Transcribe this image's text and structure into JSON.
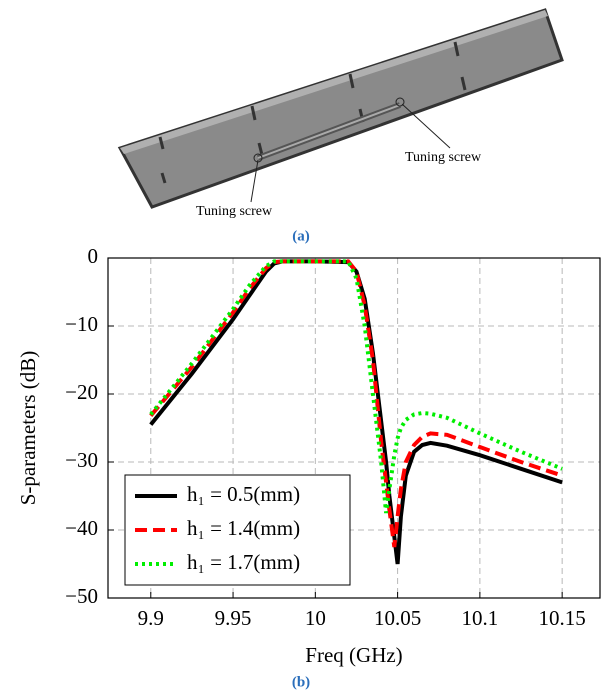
{
  "figure_a": {
    "labels": [
      "Tuning screw",
      "Tuning screw"
    ],
    "caption": "(a)"
  },
  "chart_data": {
    "type": "line",
    "x_label": "Freq (GHz)",
    "y_label": "S-parameters (dB)",
    "x": [
      9.9,
      9.925,
      9.95,
      9.96,
      9.97,
      9.975,
      9.98,
      10,
      10.02,
      10.025,
      10.03,
      10.035,
      10.04,
      10.043,
      10.045,
      10.048,
      10.05,
      10.052,
      10.055,
      10.06,
      10.065,
      10.07,
      10.08,
      10.1,
      10.125,
      10.15
    ],
    "series": [
      {
        "name": "h₁ = 0.5(mm)",
        "color": "#000000",
        "dash": "solid",
        "values": [
          -24.5,
          -17,
          -9,
          -5.5,
          -2,
          -0.8,
          -0.5,
          -0.5,
          -0.6,
          -2,
          -6,
          -14,
          -24,
          -30,
          -35,
          -41,
          -45,
          -38,
          -32,
          -28.5,
          -27.5,
          -27.2,
          -27.6,
          -29,
          -31,
          -33
        ]
      },
      {
        "name": "h₁ = 1.4(mm)",
        "color": "#ff0000",
        "dash": "dashed",
        "values": [
          -23.2,
          -16,
          -8,
          -4.5,
          -1.5,
          -0.6,
          -0.5,
          -0.5,
          -0.5,
          -2,
          -7,
          -15,
          -27,
          -33,
          -37,
          -42.5,
          -38,
          -34,
          -30,
          -27.5,
          -26.3,
          -25.8,
          -26,
          -27.8,
          -30,
          -32
        ]
      },
      {
        "name": "h₁ = 1.7(mm)",
        "color": "#00ee00",
        "dash": "dotted",
        "values": [
          -23,
          -15.5,
          -7.5,
          -4,
          -1.2,
          -0.5,
          -0.5,
          -0.5,
          -0.5,
          -3,
          -10,
          -20,
          -30,
          -37.5,
          -34,
          -29,
          -26.5,
          -25,
          -23.8,
          -23,
          -22.8,
          -22.9,
          -23.5,
          -25.8,
          -28.5,
          -31
        ]
      }
    ],
    "xlim": [
      9.874,
      10.173
    ],
    "ylim": [
      -50,
      0
    ],
    "xticks": [
      9.9,
      9.95,
      10,
      10.05,
      10.1,
      10.15
    ],
    "yticks": [
      {
        "value": -50,
        "label": "−50"
      },
      {
        "value": -40,
        "label": "−40"
      },
      {
        "value": -30,
        "label": "−30"
      },
      {
        "value": -20,
        "label": "−20"
      },
      {
        "value": -10,
        "label": "−10"
      },
      0
    ],
    "grid": true,
    "legend": "lower left"
  },
  "figure_b_caption": "(b)"
}
